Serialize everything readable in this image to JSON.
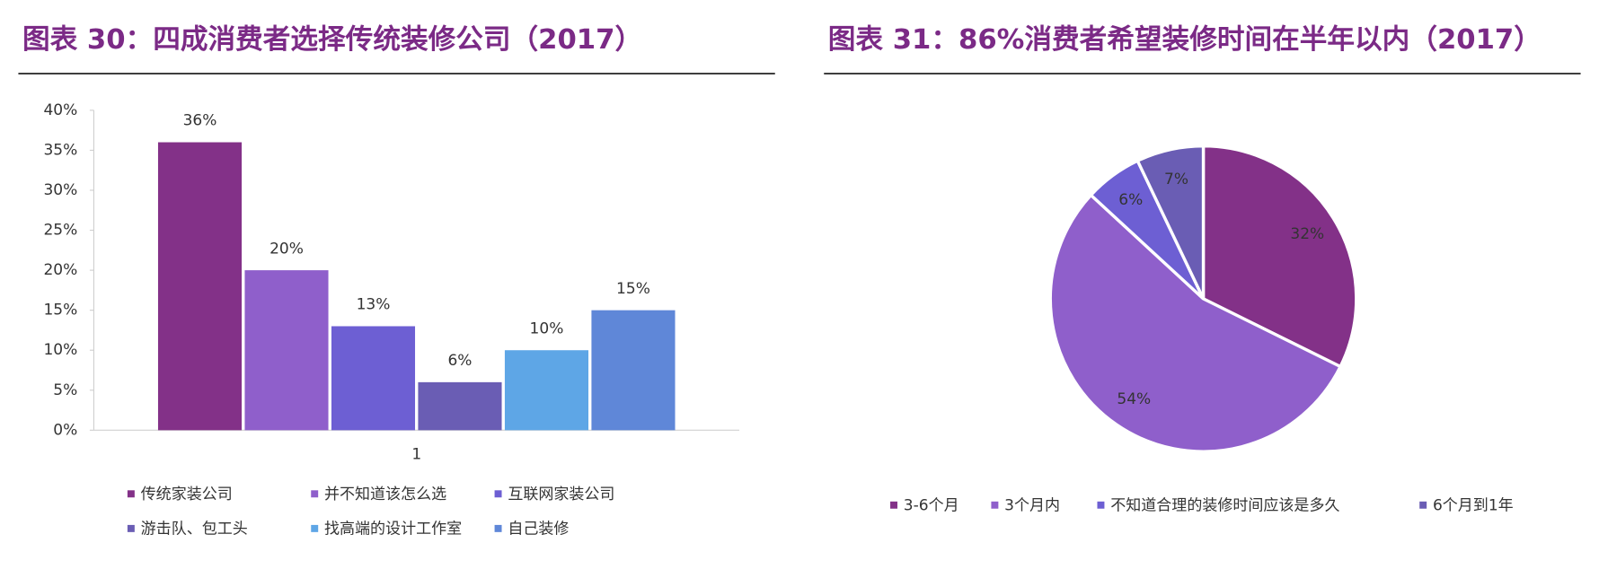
{
  "chart_data": [
    {
      "type": "bar",
      "title": "图表 30：四成消费者选择传统装修公司（2017）",
      "categories": [
        "1"
      ],
      "series": [
        {
          "name": "传统家装公司",
          "color": "#833188",
          "values": [
            36
          ],
          "value_labels": [
            "36%"
          ]
        },
        {
          "name": "并不知道该怎么选",
          "color": "#8f5fcb",
          "values": [
            20
          ],
          "value_labels": [
            "20%"
          ]
        },
        {
          "name": "互联网家装公司",
          "color": "#6d5fd3",
          "values": [
            13
          ],
          "value_labels": [
            "13%"
          ]
        },
        {
          "name": "游击队、包工头",
          "color": "#6a5db4",
          "values": [
            6
          ],
          "value_labels": [
            "6%"
          ]
        },
        {
          "name": "找高端的设计工作室",
          "color": "#5ea6e6",
          "values": [
            10
          ],
          "value_labels": [
            "10%"
          ]
        },
        {
          "name": "自己装修",
          "color": "#5f87d8",
          "values": [
            15
          ],
          "value_labels": [
            "15%"
          ]
        }
      ],
      "ylim": [
        0,
        40
      ],
      "yticks": [
        {
          "value": 0,
          "label": "0%"
        },
        {
          "value": 5,
          "label": "5%"
        },
        {
          "value": 10,
          "label": "10%"
        },
        {
          "value": 15,
          "label": "15%"
        },
        {
          "value": 20,
          "label": "20%"
        },
        {
          "value": 25,
          "label": "25%"
        },
        {
          "value": 30,
          "label": "30%"
        },
        {
          "value": 35,
          "label": "35%"
        },
        {
          "value": 40,
          "label": "40%"
        }
      ]
    },
    {
      "type": "pie",
      "title": "图表 31：86%消费者希望装修时间在半年以内（2017）",
      "categories": [
        "3-6个月",
        "3个月内",
        "不知道合理的装修时间应该是多久",
        "6个月到1年"
      ],
      "values": [
        32,
        54,
        6,
        7
      ],
      "value_labels": [
        "32%",
        "54%",
        "6%",
        "7%"
      ],
      "colors": [
        "#833188",
        "#8f5fcb",
        "#6d5fd3",
        "#6a5db4"
      ]
    }
  ]
}
